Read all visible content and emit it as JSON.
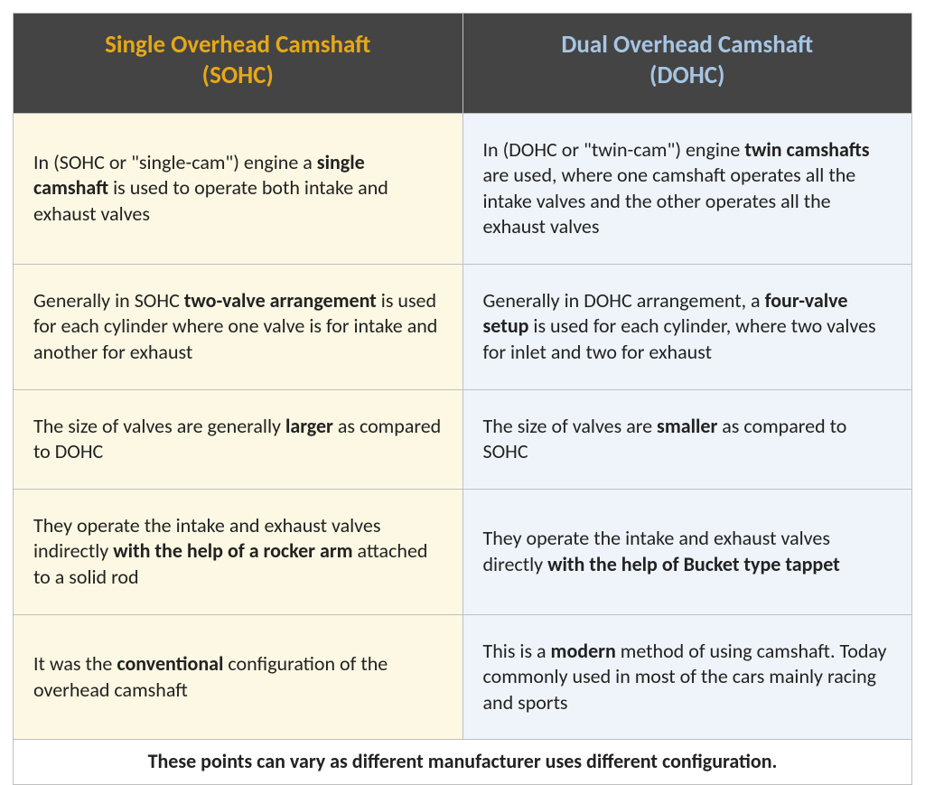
{
  "headers": {
    "sohc_line1": "Single Overhead Camshaft",
    "sohc_line2": "(SOHC)",
    "dohc_line1": "Dual Overhead Camshaft",
    "dohc_line2": "(DOHC)"
  },
  "colors": {
    "header_bg": "#444444",
    "sohc_header_text": "#e6a817",
    "dohc_header_text": "#a7c5e3",
    "sohc_cell_bg": "#fdf8e3",
    "dohc_cell_bg": "#eff4fa",
    "border": "#c0c0c0",
    "body_text": "#222222"
  },
  "typography": {
    "header_fontsize": 27,
    "body_fontsize": 22,
    "footer_fontsize": 22
  },
  "rows": [
    {
      "sohc": {
        "pre": "In (SOHC or \"single-cam\") engine a ",
        "bold": "single camshaft",
        "post": " is used to operate both intake and exhaust valves"
      },
      "dohc": {
        "pre": "In (DOHC or \"twin-cam\") engine ",
        "bold": "twin camshafts",
        "post": " are used, where one camshaft operates all the intake valves and the other operates all the exhaust valves"
      }
    },
    {
      "sohc": {
        "pre": "Generally in SOHC ",
        "bold": "two-valve arrangement",
        "post": " is used for each cylinder where one valve is for intake and another for exhaust"
      },
      "dohc": {
        "pre": "Generally in DOHC arrangement, a ",
        "bold": "four-valve setup",
        "post": " is used for each cylinder, where two valves for inlet and two for exhaust"
      }
    },
    {
      "sohc": {
        "pre": "The size of valves are generally ",
        "bold": "larger",
        "post": " as compared to DOHC"
      },
      "dohc": {
        "pre": "The size of valves are ",
        "bold": "smaller",
        "post": " as compared to SOHC"
      }
    },
    {
      "sohc": {
        "pre": "They operate the intake and exhaust valves indirectly ",
        "bold": "with the help of a rocker arm",
        "post": " attached to a solid rod"
      },
      "dohc": {
        "pre": "They operate the intake and exhaust valves directly ",
        "bold": "with the help of Bucket type tappet",
        "post": ""
      }
    },
    {
      "sohc": {
        "pre": "It was the ",
        "bold": "conventional",
        "post": " configuration of the overhead camshaft"
      },
      "dohc": {
        "pre": "This is a ",
        "bold": "modern",
        "post": " method of using camshaft. Today commonly used in most of the cars mainly racing and sports"
      }
    }
  ],
  "footer": "These points can vary as different manufacturer uses different configuration."
}
